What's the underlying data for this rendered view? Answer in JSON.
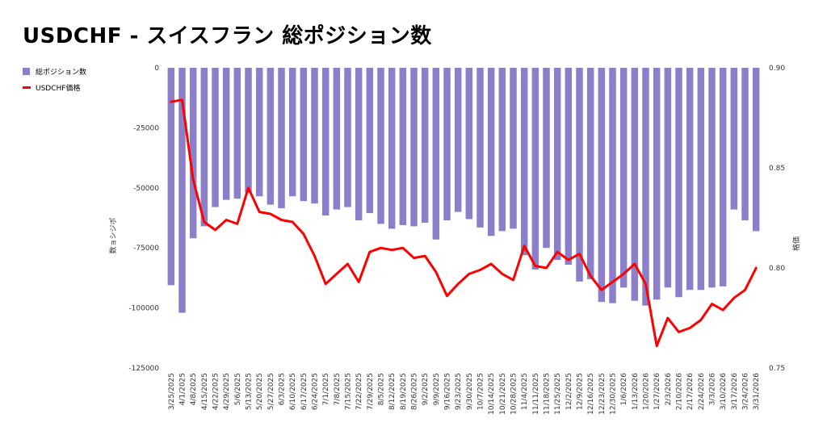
{
  "title": "USDCHF - スイスフラン 総ポジション数",
  "legend": [
    {
      "label": "総ポジション数",
      "color": "#8c7fc9",
      "kind": "bar"
    },
    {
      "label": "USDCHF価格",
      "color": "#ff0000",
      "kind": "line"
    }
  ],
  "chart_data": {
    "type": "bar+line",
    "title": "USDCHF - スイスフラン 総ポジション数",
    "ylabel_left": "数ョシジポ",
    "ylabel_right": "格価",
    "y_left": {
      "min": -125000,
      "max": 0,
      "ticks": [
        0,
        -25000,
        -50000,
        -75000,
        -100000,
        -125000
      ]
    },
    "y_right": {
      "min": 0.75,
      "max": 0.9,
      "ticks": [
        0.9,
        0.85,
        0.8,
        0.75
      ],
      "tick_labels": [
        "0.90",
        "0.85",
        "0.80",
        "0.75"
      ]
    },
    "categories": [
      "3/25/2025",
      "4/1/2025",
      "4/8/2025",
      "4/15/2025",
      "4/22/2025",
      "4/29/2025",
      "5/6/2025",
      "5/13/2025",
      "5/20/2025",
      "5/27/2025",
      "6/3/2025",
      "6/10/2025",
      "6/17/2025",
      "6/24/2025",
      "7/1/2025",
      "7/8/2025",
      "7/15/2025",
      "7/22/2025",
      "7/29/2025",
      "8/5/2025",
      "8/12/2025",
      "8/19/2025",
      "8/26/2025",
      "9/2/2025",
      "9/9/2025",
      "9/16/2025",
      "9/23/2025",
      "9/30/2025",
      "10/7/2025",
      "10/14/2025",
      "10/21/2025",
      "10/28/2025",
      "11/4/2025",
      "11/11/2025",
      "11/18/2025",
      "11/25/2025",
      "12/2/2025",
      "12/9/2025",
      "12/16/2025",
      "12/23/2025",
      "12/30/2025",
      "1/6/2026",
      "1/13/2026",
      "1/20/2026",
      "1/27/2026",
      "2/3/2026",
      "2/10/2026",
      "2/17/2026",
      "2/24/2026",
      "3/3/2026",
      "3/10/2026",
      "3/17/2026",
      "3/24/2026",
      "3/31/2026"
    ],
    "series": [
      {
        "name": "総ポジション数",
        "type": "bar",
        "axis": "left",
        "color": "#8c7fc9",
        "values": [
          -90500,
          -102000,
          -71000,
          -66000,
          -58000,
          -55000,
          -54500,
          -52000,
          -53500,
          -57000,
          -58500,
          -53500,
          -55500,
          -56500,
          -61500,
          -59000,
          -58000,
          -63500,
          -60500,
          -65000,
          -67000,
          -65500,
          -66000,
          -64500,
          -71500,
          -63500,
          -60000,
          -63000,
          -66500,
          -70000,
          -68000,
          -67000,
          -78000,
          -84000,
          -75000,
          -80000,
          -82000,
          -89000,
          -88000,
          -97500,
          -98000,
          -91500,
          -97000,
          -99000,
          -96500,
          -91500,
          -95500,
          -92500,
          -92500,
          -91500,
          -91000,
          -59000,
          -63500,
          -68000
        ]
      },
      {
        "name": "USDCHF価格",
        "type": "line",
        "axis": "right",
        "color": "#ff0000",
        "values": [
          0.883,
          0.884,
          0.844,
          0.823,
          0.819,
          0.824,
          0.822,
          0.84,
          0.828,
          0.827,
          0.824,
          0.823,
          0.817,
          0.806,
          0.792,
          0.797,
          0.802,
          0.793,
          0.808,
          0.81,
          0.809,
          0.81,
          0.805,
          0.806,
          0.798,
          0.786,
          0.792,
          0.797,
          0.799,
          0.802,
          0.797,
          0.794,
          0.811,
          0.801,
          0.8,
          0.808,
          0.804,
          0.807,
          0.796,
          0.789,
          0.793,
          0.797,
          0.802,
          0.792,
          0.761,
          0.775,
          0.768,
          0.77,
          0.774,
          0.782,
          0.779,
          0.785,
          0.789,
          0.8
        ]
      }
    ]
  }
}
